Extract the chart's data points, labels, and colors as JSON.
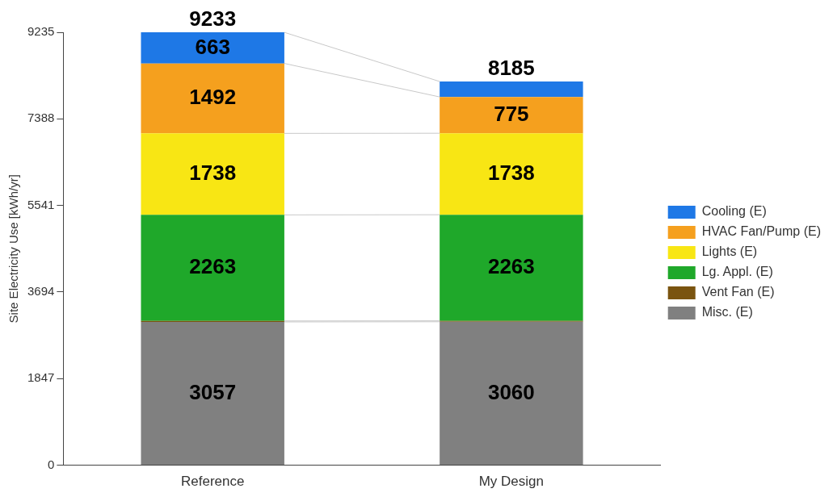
{
  "chart_data": {
    "type": "bar",
    "stacked": true,
    "ylabel": "Site Electricity Use [kWh/yr]",
    "categories": [
      "Reference",
      "My Design"
    ],
    "ylim": [
      0,
      9235
    ],
    "yticks": [
      0,
      1847,
      3694,
      5541,
      7388,
      9235
    ],
    "grid": false,
    "legend": "right",
    "series": [
      {
        "name": "Misc. (E)",
        "color": "#808080",
        "values": [
          3057,
          3060
        ],
        "value_labels": [
          "3057",
          "3060"
        ]
      },
      {
        "name": "Vent Fan (E)",
        "color": "#7a5410",
        "values": [
          20,
          20
        ],
        "value_labels": [
          null,
          null
        ]
      },
      {
        "name": "Lg. Appl. (E)",
        "color": "#1fa82a",
        "values": [
          2263,
          2263
        ],
        "value_labels": [
          "2263",
          "2263"
        ]
      },
      {
        "name": "Lights (E)",
        "color": "#f8e614",
        "values": [
          1738,
          1738
        ],
        "value_labels": [
          "1738",
          "1738"
        ]
      },
      {
        "name": "HVAC Fan/Pump (E)",
        "color": "#f5a01e",
        "values": [
          1492,
          775
        ],
        "value_labels": [
          "1492",
          "775"
        ]
      },
      {
        "name": "Cooling (E)",
        "color": "#1e78e6",
        "values": [
          663,
          329
        ],
        "value_labels": [
          "663",
          null
        ]
      }
    ],
    "totals": [
      "9233",
      "8185"
    ]
  }
}
